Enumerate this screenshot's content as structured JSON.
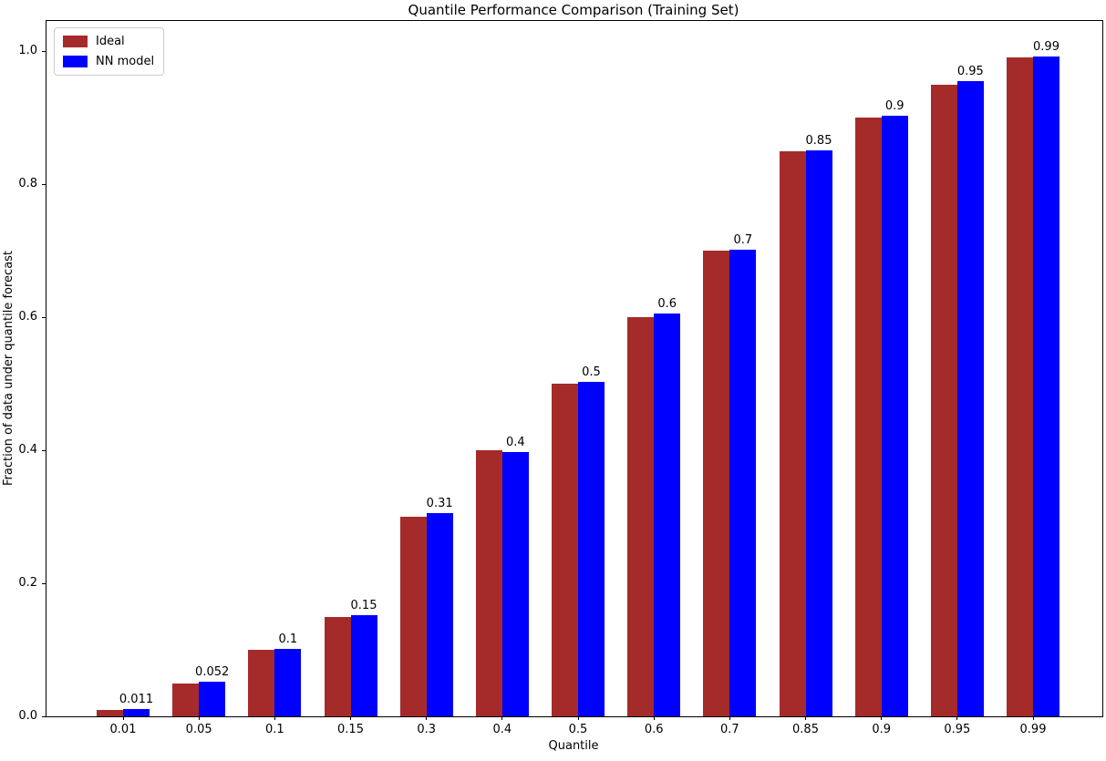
{
  "chart_data": {
    "type": "bar",
    "title": "Quantile Performance Comparison (Training Set)",
    "xlabel": "Quantile",
    "ylabel": "Fraction of data under quantile forecast",
    "categories": [
      "0.01",
      "0.05",
      "0.1",
      "0.15",
      "0.3",
      "0.4",
      "0.5",
      "0.6",
      "0.7",
      "0.85",
      "0.9",
      "0.95",
      "0.99"
    ],
    "series": [
      {
        "name": "Ideal",
        "color": "#a52a2a",
        "values": [
          0.01,
          0.05,
          0.1,
          0.15,
          0.3,
          0.4,
          0.5,
          0.6,
          0.7,
          0.85,
          0.9,
          0.95,
          0.99
        ]
      },
      {
        "name": "NN model",
        "color": "#0000ff",
        "values": [
          0.011,
          0.052,
          0.102,
          0.152,
          0.305,
          0.397,
          0.503,
          0.605,
          0.701,
          0.851,
          0.903,
          0.955,
          0.992
        ],
        "bar_labels": [
          "0.011",
          "0.052",
          "0.1",
          "0.15",
          "0.31",
          "0.4",
          "0.5",
          "0.6",
          "0.7",
          "0.85",
          "0.9",
          "0.95",
          "0.99"
        ]
      }
    ],
    "ylim": [
      0,
      1.045
    ],
    "yticks": [
      "0.0",
      "0.2",
      "0.4",
      "0.6",
      "0.8",
      "1.0"
    ],
    "legend_position": "upper left",
    "grid": false,
    "axis_color": "#000000",
    "background_color": "#ffffff"
  }
}
